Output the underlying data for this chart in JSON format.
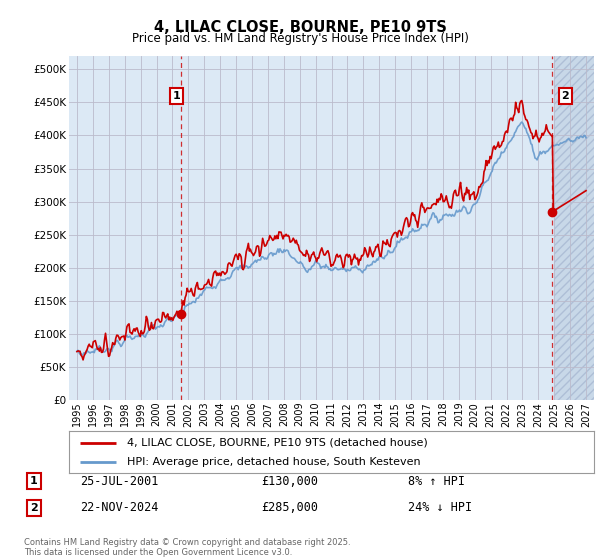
{
  "title": "4, LILAC CLOSE, BOURNE, PE10 9TS",
  "subtitle": "Price paid vs. HM Land Registry's House Price Index (HPI)",
  "legend_entry1": "4, LILAC CLOSE, BOURNE, PE10 9TS (detached house)",
  "legend_entry2": "HPI: Average price, detached house, South Kesteven",
  "annotation1_label": "1",
  "annotation1_date": "25-JUL-2001",
  "annotation1_price": "£130,000",
  "annotation1_hpi": "8% ↑ HPI",
  "annotation1_year": 2001.56,
  "annotation1_value": 130000,
  "annotation2_label": "2",
  "annotation2_date": "22-NOV-2024",
  "annotation2_price": "£285,000",
  "annotation2_hpi": "24% ↓ HPI",
  "annotation2_year": 2024.89,
  "annotation2_value": 285000,
  "ylabel_ticks": [
    "£0",
    "£50K",
    "£100K",
    "£150K",
    "£200K",
    "£250K",
    "£300K",
    "£350K",
    "£400K",
    "£450K",
    "£500K"
  ],
  "ytick_values": [
    0,
    50000,
    100000,
    150000,
    200000,
    250000,
    300000,
    350000,
    400000,
    450000,
    500000
  ],
  "xlim": [
    1994.5,
    2027.5
  ],
  "ylim": [
    0,
    520000
  ],
  "hpi_color": "#6699cc",
  "price_color": "#cc0000",
  "vline_color": "#cc0000",
  "grid_color": "#bbbbcc",
  "chart_bg": "#dce9f5",
  "hatch_bg": "#c8d8e8",
  "background_color": "#ffffff",
  "footer": "Contains HM Land Registry data © Crown copyright and database right 2025.\nThis data is licensed under the Open Government Licence v3.0.",
  "xtick_years": [
    1995,
    1996,
    1997,
    1998,
    1999,
    2000,
    2001,
    2002,
    2003,
    2004,
    2005,
    2006,
    2007,
    2008,
    2009,
    2010,
    2011,
    2012,
    2013,
    2014,
    2015,
    2016,
    2017,
    2018,
    2019,
    2020,
    2021,
    2022,
    2023,
    2024,
    2025,
    2026,
    2027
  ]
}
